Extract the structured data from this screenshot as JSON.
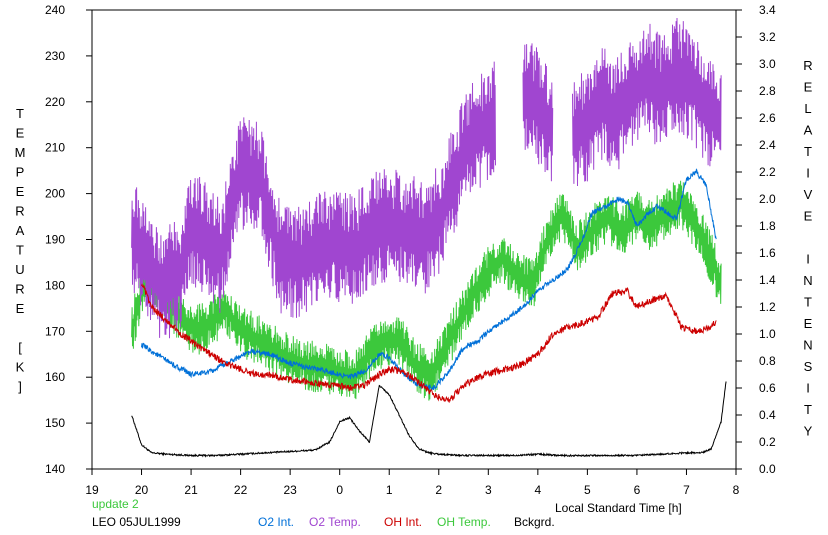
{
  "chart_data": {
    "type": "line",
    "title": "",
    "xlabel": "Local Standard Time [h]",
    "ylabel_left": "TEMPERATURE [K]",
    "ylabel_right": "RELATIVE INTENSITY",
    "x_ticks": [
      "19",
      "20",
      "21",
      "22",
      "23",
      "0",
      "1",
      "2",
      "3",
      "4",
      "5",
      "6",
      "7",
      "8"
    ],
    "xlim_hours_after_19": [
      0,
      13
    ],
    "ylim_left": [
      140,
      240
    ],
    "ylim_right": [
      0.0,
      3.4
    ],
    "y_ticks_left": [
      140,
      150,
      160,
      170,
      180,
      190,
      200,
      210,
      220,
      230,
      240
    ],
    "y_ticks_right": [
      "0.0",
      "0.2",
      "0.4",
      "0.6",
      "0.8",
      "1.0",
      "1.2",
      "1.4",
      "1.6",
      "1.8",
      "2.0",
      "2.2",
      "2.4",
      "2.6",
      "2.8",
      "3.0",
      "3.2",
      "3.4"
    ],
    "grid": false,
    "annotations": {
      "update": "update 2",
      "site": "LEO 05JUL1999"
    },
    "series": [
      {
        "name": "O2 Int.",
        "axis": "right",
        "color": "#0070d8",
        "noise": 0.02,
        "x": [
          20.0,
          20.3,
          20.7,
          21.0,
          21.4,
          21.8,
          22.2,
          22.6,
          23.0,
          23.4,
          23.8,
          24.2,
          24.5,
          24.8,
          25.0,
          25.3,
          25.6,
          25.9,
          26.2,
          26.5,
          26.8,
          27.1,
          27.4,
          27.7,
          28.0,
          28.3,
          28.6,
          28.9,
          29.1,
          29.4,
          29.6,
          29.8,
          30.0,
          30.2,
          30.4,
          30.6,
          30.8,
          31.0,
          31.2,
          31.4,
          31.6
        ],
        "y": [
          0.92,
          0.85,
          0.76,
          0.7,
          0.72,
          0.8,
          0.87,
          0.85,
          0.78,
          0.75,
          0.72,
          0.68,
          0.72,
          0.85,
          0.83,
          0.7,
          0.62,
          0.6,
          0.72,
          0.9,
          0.95,
          1.05,
          1.12,
          1.2,
          1.32,
          1.4,
          1.48,
          1.7,
          1.9,
          1.95,
          2.0,
          1.98,
          1.8,
          1.88,
          1.95,
          1.9,
          1.85,
          2.15,
          2.2,
          2.1,
          1.7
        ]
      },
      {
        "name": "O2 Temp.",
        "axis": "left",
        "color": "#a046d0",
        "noise": 9,
        "x": [
          19.8,
          20.1,
          20.4,
          20.8,
          21.0,
          21.3,
          21.6,
          22.0,
          22.4,
          22.8,
          23.2,
          23.6,
          24.0,
          24.3,
          24.6,
          25.0,
          25.4,
          25.7,
          26.0,
          26.3,
          26.6,
          26.9,
          27.2,
          27.5,
          27.8,
          28.1,
          28.4,
          28.7,
          29.0,
          29.3,
          29.6,
          29.9,
          30.2,
          30.5,
          30.8,
          31.1,
          31.4,
          31.7
        ],
        "y": [
          192,
          185,
          180,
          182,
          193,
          190,
          186,
          205,
          203,
          186,
          185,
          188,
          189,
          187,
          192,
          193,
          192,
          190,
          194,
          203,
          211,
          214,
          218,
          218,
          221,
          218,
          210,
          213,
          215,
          220,
          217,
          222,
          225,
          222,
          226,
          224,
          219,
          215
        ],
        "gaps": [
          [
            27.15,
            27.7
          ],
          [
            28.3,
            28.7
          ]
        ]
      },
      {
        "name": "OH Int.",
        "axis": "right",
        "color": "#cc0000",
        "noise": 0.025,
        "x": [
          20.0,
          20.2,
          20.5,
          20.8,
          21.1,
          21.4,
          21.7,
          22.0,
          22.3,
          22.6,
          23.0,
          23.4,
          23.8,
          24.2,
          24.5,
          24.8,
          25.0,
          25.3,
          25.6,
          25.9,
          26.2,
          26.5,
          26.8,
          27.1,
          27.4,
          27.7,
          28.0,
          28.3,
          28.6,
          28.9,
          29.2,
          29.5,
          29.8,
          30.0,
          30.3,
          30.6,
          30.9,
          31.2,
          31.5,
          31.6
        ],
        "y": [
          1.38,
          1.2,
          1.1,
          1.0,
          0.92,
          0.85,
          0.78,
          0.74,
          0.7,
          0.7,
          0.66,
          0.64,
          0.62,
          0.6,
          0.62,
          0.7,
          0.74,
          0.72,
          0.64,
          0.55,
          0.5,
          0.62,
          0.68,
          0.72,
          0.74,
          0.78,
          0.85,
          1.0,
          1.05,
          1.08,
          1.12,
          1.3,
          1.32,
          1.2,
          1.25,
          1.28,
          1.05,
          1.02,
          1.05,
          1.1
        ]
      },
      {
        "name": "OH Temp.",
        "axis": "left",
        "color": "#3cc83c",
        "noise": 4,
        "x": [
          19.8,
          20.1,
          20.4,
          20.8,
          21.1,
          21.4,
          21.7,
          22.0,
          22.4,
          22.8,
          23.2,
          23.6,
          24.0,
          24.3,
          24.6,
          24.9,
          25.2,
          25.5,
          25.8,
          26.1,
          26.4,
          26.7,
          27.0,
          27.3,
          27.6,
          27.9,
          28.2,
          28.5,
          28.8,
          29.1,
          29.4,
          29.7,
          30.0,
          30.3,
          30.6,
          30.9,
          31.2,
          31.5,
          31.7
        ],
        "y": [
          170,
          183,
          178,
          173,
          170,
          172,
          175,
          170,
          168,
          165,
          163,
          162,
          161,
          160,
          165,
          168,
          168,
          163,
          160,
          165,
          172,
          178,
          183,
          186,
          182,
          180,
          190,
          196,
          188,
          192,
          195,
          192,
          195,
          193,
          196,
          198,
          193,
          186,
          180
        ]
      },
      {
        "name": "Bckgrd.",
        "axis": "right",
        "color": "#000000",
        "noise": 0.006,
        "x": [
          19.8,
          20.0,
          20.2,
          20.5,
          21.0,
          21.5,
          22.0,
          22.5,
          23.0,
          23.5,
          23.8,
          24.0,
          24.2,
          24.4,
          24.6,
          24.8,
          25.0,
          25.2,
          25.4,
          25.6,
          25.8,
          26.0,
          26.5,
          27.0,
          27.5,
          28.0,
          28.5,
          29.0,
          29.5,
          30.0,
          30.5,
          31.0,
          31.3,
          31.5,
          31.7,
          31.8
        ],
        "y": [
          0.4,
          0.18,
          0.12,
          0.11,
          0.1,
          0.1,
          0.11,
          0.12,
          0.13,
          0.14,
          0.2,
          0.35,
          0.38,
          0.28,
          0.2,
          0.62,
          0.55,
          0.4,
          0.25,
          0.15,
          0.12,
          0.11,
          0.1,
          0.1,
          0.1,
          0.11,
          0.1,
          0.1,
          0.1,
          0.1,
          0.11,
          0.12,
          0.12,
          0.15,
          0.35,
          0.65
        ]
      }
    ]
  }
}
